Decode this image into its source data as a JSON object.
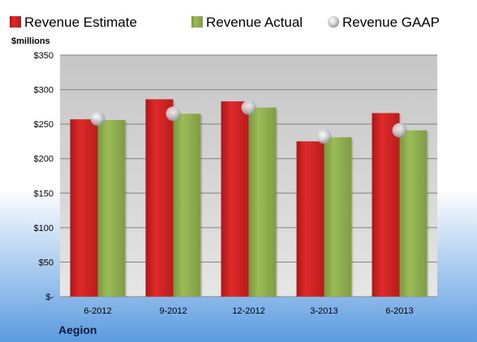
{
  "colors": {
    "estimate": "#cc2222",
    "actual": "#8fab4c",
    "gaap": "#c8cdd6",
    "plot_background": "#cfcfcf",
    "page_background_top": "#ffffff",
    "page_background_bottom": "#5b9be0"
  },
  "chart_data": {
    "type": "bar",
    "title": "",
    "company_label": "Aegion",
    "ylabel": "$millions",
    "xlabel": "",
    "ylim": [
      0,
      350
    ],
    "yticks": [
      0,
      50,
      100,
      150,
      200,
      250,
      300,
      350
    ],
    "ytick_labels": [
      "$-",
      "$50",
      "$100",
      "$150",
      "$200",
      "$250",
      "$300",
      "$350"
    ],
    "grid": true,
    "legend_position": "top",
    "categories": [
      "6-2012",
      "9-2012",
      "12-2012",
      "3-2013",
      "6-2013"
    ],
    "series": [
      {
        "name": "Revenue Estimate",
        "kind": "bar",
        "color_key": "estimate",
        "values": [
          257,
          286,
          283,
          225,
          266
        ]
      },
      {
        "name": "Revenue Actual",
        "kind": "bar",
        "color_key": "actual",
        "values": [
          256,
          265,
          274,
          231,
          241
        ]
      },
      {
        "name": "Revenue GAAP",
        "kind": "marker",
        "color_key": "gaap",
        "values": [
          258,
          265,
          274,
          232,
          241
        ]
      }
    ]
  }
}
